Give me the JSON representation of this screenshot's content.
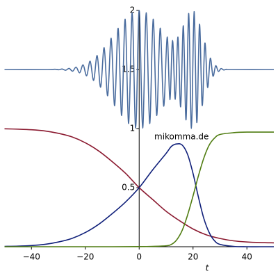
{
  "chart_data": {
    "type": "line",
    "annotation": "mikomma.de",
    "x_label": "t",
    "xlim": [
      -50,
      50
    ],
    "ylim": [
      0,
      2
    ],
    "xticks": [
      {
        "value": -40,
        "label": "−40"
      },
      {
        "value": -20,
        "label": "−20"
      },
      0,
      20,
      40
    ],
    "yticks": [
      0.5,
      1,
      1.5,
      2
    ],
    "series": [
      {
        "color": "#4a6c9e",
        "x": [
          -50,
          -34,
          -31.2,
          -29.9,
          -28.6,
          -27.3,
          -26,
          -24.7,
          -23.4,
          -22.1,
          -20.8,
          -19.5,
          -18.2,
          -16.9,
          -15.6,
          -14.3,
          -13,
          -11.7,
          -10.4,
          -9.1,
          -7.8,
          -6.5,
          -5.2,
          -3.9,
          -2.6,
          -1.3,
          0,
          1.3,
          2.6,
          3.9,
          5.2,
          6.5,
          7.8,
          9.1,
          10.4,
          11.4,
          12.4,
          13.4,
          14.4,
          15.4,
          16.4,
          17.4,
          18.4,
          19.4,
          20.4,
          21.4,
          22.4,
          23.4,
          24.4,
          25.4,
          26.4,
          27.4,
          28.4,
          29.4,
          30.4,
          31.4,
          32.4,
          34,
          50
        ],
        "values": [
          1.5,
          1.5,
          1.502,
          1.498,
          1.504,
          1.494,
          1.509,
          1.486,
          1.52,
          1.472,
          1.539,
          1.447,
          1.57,
          1.408,
          1.618,
          1.351,
          1.684,
          1.278,
          1.764,
          1.194,
          1.849,
          1.111,
          1.926,
          1.043,
          1.98,
          1.005,
          2.0,
          1.005,
          1.98,
          1.043,
          1.926,
          1.111,
          1.85,
          1.19,
          1.775,
          1.245,
          1.746,
          1.248,
          1.775,
          1.184,
          1.87,
          1.074,
          1.974,
          1.002,
          1.99,
          1.051,
          1.883,
          1.196,
          1.723,
          1.349,
          1.595,
          1.444,
          1.531,
          1.484,
          1.508,
          1.496,
          1.502,
          1.5,
          1.5
        ]
      },
      {
        "color": "#8b1a30",
        "x": [
          -50,
          -45,
          -40,
          -35,
          -30,
          -25,
          -20,
          -15,
          -10,
          -5,
          0,
          5,
          10,
          15,
          20,
          25,
          30,
          35,
          40,
          45,
          50
        ],
        "values": [
          0.998,
          0.995,
          0.99,
          0.98,
          0.96,
          0.93,
          0.88,
          0.81,
          0.72,
          0.62,
          0.5,
          0.4,
          0.3,
          0.22,
          0.15,
          0.1,
          0.07,
          0.05,
          0.04,
          0.035,
          0.033
        ]
      },
      {
        "color": "#10207a",
        "x": [
          -50,
          -45,
          -40,
          -35,
          -30,
          -25,
          -20,
          -15,
          -10,
          -5,
          0,
          5,
          10,
          12,
          14,
          16,
          18,
          20,
          22,
          24,
          26,
          28,
          30,
          35,
          40,
          45,
          50
        ],
        "values": [
          0.003,
          0.005,
          0.01,
          0.02,
          0.04,
          0.07,
          0.12,
          0.19,
          0.28,
          0.38,
          0.5,
          0.65,
          0.79,
          0.85,
          0.87,
          0.86,
          0.78,
          0.62,
          0.42,
          0.24,
          0.12,
          0.05,
          0.02,
          0.003,
          0,
          0,
          0
        ]
      },
      {
        "color": "#4f7c10",
        "x": [
          -50,
          -30,
          -10,
          0,
          5,
          10,
          12,
          14,
          16,
          18,
          20,
          22,
          24,
          26,
          28,
          30,
          35,
          40,
          50
        ],
        "values": [
          0,
          0,
          0,
          0.001,
          0.003,
          0.008,
          0.02,
          0.06,
          0.14,
          0.27,
          0.43,
          0.6,
          0.75,
          0.86,
          0.92,
          0.95,
          0.965,
          0.97,
          0.97
        ]
      }
    ]
  }
}
